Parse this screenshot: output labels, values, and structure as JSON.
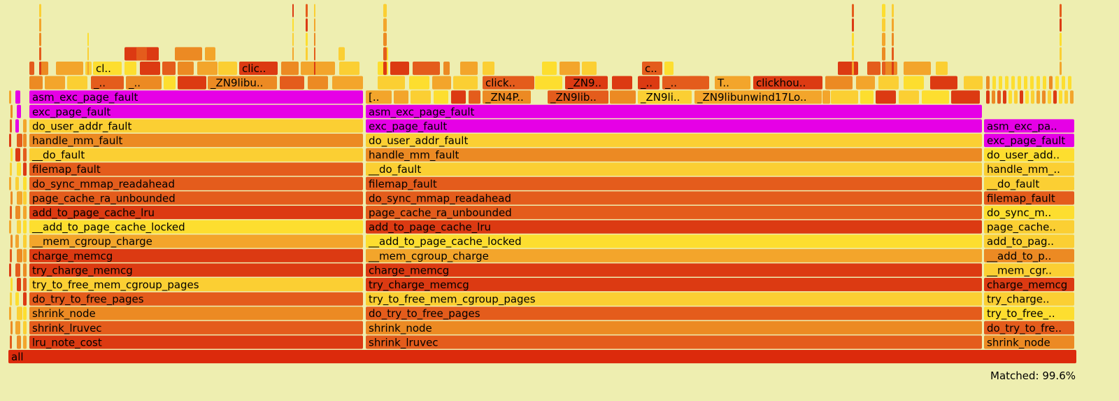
{
  "status": {
    "matched": "Matched: 99.6%"
  },
  "root": "all",
  "colors": {
    "background": "#eeeeb0",
    "highlight": "#e600e6",
    "palette": [
      "#dc3a12",
      "#e45c1c",
      "#ec8a23",
      "#f3a52b",
      "#fbcf33",
      "#fdde2f"
    ]
  },
  "columns": {
    "left": [
      "lru_note_cost",
      "shrink_lruvec",
      "shrink_node",
      "do_try_to_free_pages",
      "try_to_free_mem_cgroup_pages",
      "try_charge_memcg",
      "charge_memcg",
      "__mem_cgroup_charge",
      "__add_to_page_cache_locked",
      "add_to_page_cache_lru",
      "page_cache_ra_unbounded",
      "do_sync_mmap_readahead",
      "filemap_fault",
      "__do_fault",
      "handle_mm_fault",
      "do_user_addr_fault",
      "exc_page_fault",
      "asm_exc_page_fault"
    ],
    "middle": [
      "shrink_lruvec",
      "shrink_node",
      "do_try_to_free_pages",
      "try_to_free_mem_cgroup_pages",
      "try_charge_memcg",
      "charge_memcg",
      "__mem_cgroup_charge",
      "__add_to_page_cache_locked",
      "add_to_page_cache_lru",
      "page_cache_ra_unbounded",
      "do_sync_mmap_readahead",
      "filemap_fault",
      "__do_fault",
      "handle_mm_fault",
      "do_user_addr_fault",
      "exc_page_fault",
      "asm_exc_page_fault"
    ],
    "right": [
      "shrink_node",
      "do_try_to_fre..",
      "try_to_free_..",
      "try_charge..",
      "charge_memcg",
      "__mem_cgr..",
      "__add_to_p..",
      "add_to_pag..",
      "page_cache..",
      "do_sync_m..",
      "filemap_fault",
      "__do_fault",
      "handle_mm_..",
      "do_user_add..",
      "exc_page_fault",
      "asm_exc_pa.."
    ]
  },
  "small_labels": {
    "row3": [
      "[..",
      "_ZN4P..",
      "_ZN9lib..",
      "_ZN9li..",
      "_ZN9libunwind17Lo.."
    ],
    "row2": [
      "_..",
      "_..",
      "_ZN9libu..",
      "click..",
      "_ZN9..",
      "_..",
      "_..",
      "T..",
      "clickhou.."
    ],
    "row1": [
      "cl..",
      "clic..",
      "c.."
    ]
  }
}
